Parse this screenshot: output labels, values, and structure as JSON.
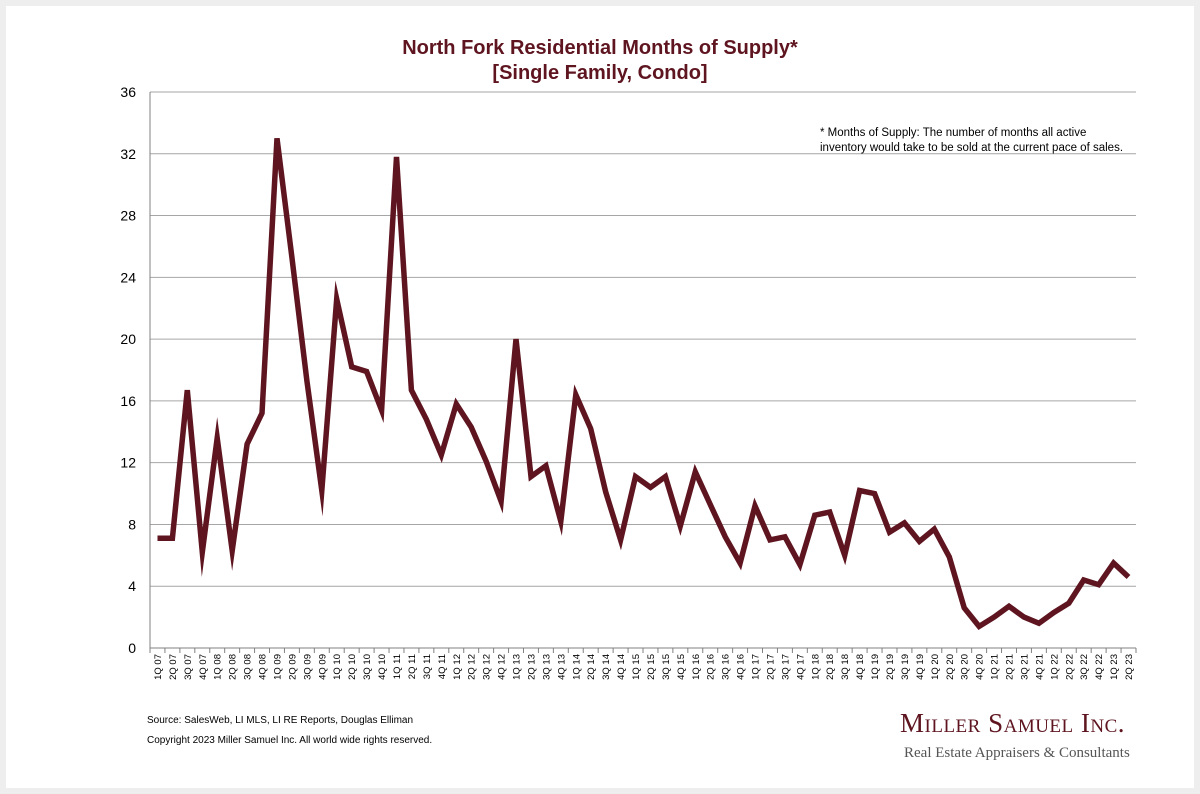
{
  "chart_data": {
    "type": "line",
    "title": "North Fork Residential Months of Supply*",
    "subtitle": "[Single Family, Condo]",
    "footnote_line1": "* Months of Supply: The number of months all active",
    "footnote_line2": "inventory would take to be sold at the current pace of sales.",
    "ylim": [
      0,
      36
    ],
    "yticks": [
      0,
      4,
      8,
      12,
      16,
      20,
      24,
      28,
      32,
      36
    ],
    "grid": true,
    "line_color": "#5e1520",
    "categories": [
      "1Q 07",
      "2Q 07",
      "3Q 07",
      "4Q 07",
      "1Q 08",
      "2Q 08",
      "3Q 08",
      "4Q 08",
      "1Q 09",
      "2Q 09",
      "3Q 09",
      "4Q 09",
      "1Q 10",
      "2Q 10",
      "3Q 10",
      "4Q 10",
      "1Q 11",
      "2Q 11",
      "3Q 11",
      "4Q 11",
      "1Q 12",
      "2Q 12",
      "3Q 12",
      "4Q 12",
      "1Q 13",
      "2Q 13",
      "3Q 13",
      "4Q 13",
      "1Q 14",
      "2Q 14",
      "3Q 14",
      "4Q 14",
      "1Q 15",
      "2Q 15",
      "3Q 15",
      "4Q 15",
      "1Q 16",
      "2Q 16",
      "3Q 16",
      "4Q 16",
      "1Q 17",
      "2Q 17",
      "3Q 17",
      "4Q 17",
      "1Q 18",
      "2Q 18",
      "3Q 18",
      "4Q 18",
      "1Q 19",
      "2Q 19",
      "3Q 19",
      "4Q 19",
      "1Q 20",
      "2Q 20",
      "3Q 20",
      "4Q 20",
      "1Q 21",
      "2Q 21",
      "3Q 21",
      "4Q 21",
      "1Q 22",
      "2Q 22",
      "3Q 22",
      "4Q 22",
      "1Q 23",
      "2Q 23"
    ],
    "values": [
      7.1,
      7.1,
      16.7,
      6.2,
      13.6,
      6.3,
      13.2,
      15.2,
      33.0,
      25.3,
      17.3,
      10.2,
      22.6,
      18.2,
      17.9,
      15.4,
      31.8,
      16.7,
      14.8,
      12.5,
      15.8,
      14.3,
      12.1,
      9.5,
      20.0,
      11.1,
      11.8,
      8.2,
      16.4,
      14.2,
      10.1,
      7.0,
      11.1,
      10.4,
      11.1,
      7.9,
      11.4,
      9.3,
      7.2,
      5.5,
      9.2,
      7.0,
      7.2,
      5.4,
      8.6,
      8.8,
      6.0,
      10.2,
      10.0,
      7.5,
      8.1,
      6.9,
      7.7,
      5.9,
      2.6,
      1.4,
      2.0,
      2.7,
      2.0,
      1.6,
      2.3,
      2.9,
      4.4,
      4.1,
      5.5,
      4.6
    ]
  },
  "source": "Source: SalesWeb, LI MLS, LI RE Reports, Douglas Elliman",
  "copyright": "Copyright 2023 Miller Samuel Inc.  All world wide rights reserved.",
  "logo": {
    "name": "Miller Samuel Inc.",
    "tagline": "Real Estate Appraisers & Consultants"
  }
}
